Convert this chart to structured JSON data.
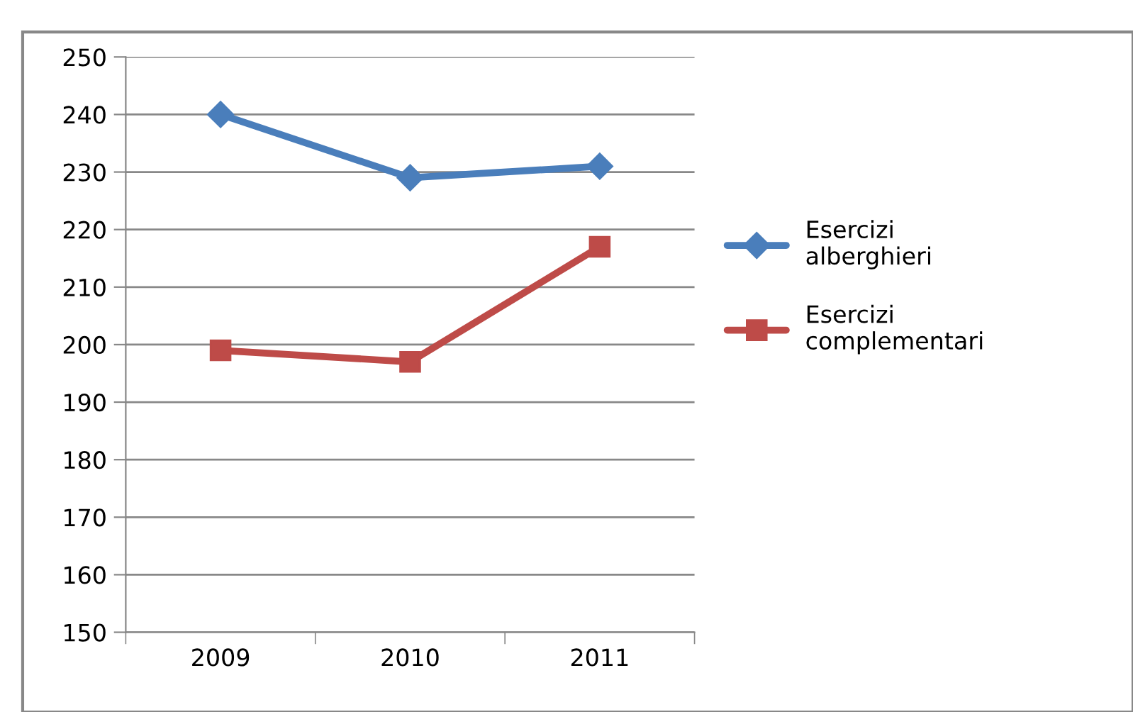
{
  "chart_data": {
    "type": "line",
    "categories": [
      "2009",
      "2010",
      "2011"
    ],
    "series": [
      {
        "name": "Esercizi\nalberghieri",
        "color": "#4a7ebb",
        "values": [
          240,
          229,
          231
        ],
        "marker": "diamond"
      },
      {
        "name": "Esercizi\ncomplementari",
        "color": "#be4b48",
        "values": [
          199,
          197,
          217
        ],
        "marker": "square"
      }
    ],
    "ylim": [
      150,
      250
    ],
    "yticks": [
      150,
      160,
      170,
      180,
      190,
      200,
      210,
      220,
      230,
      240,
      250
    ],
    "grid": "y",
    "legend": "right"
  }
}
